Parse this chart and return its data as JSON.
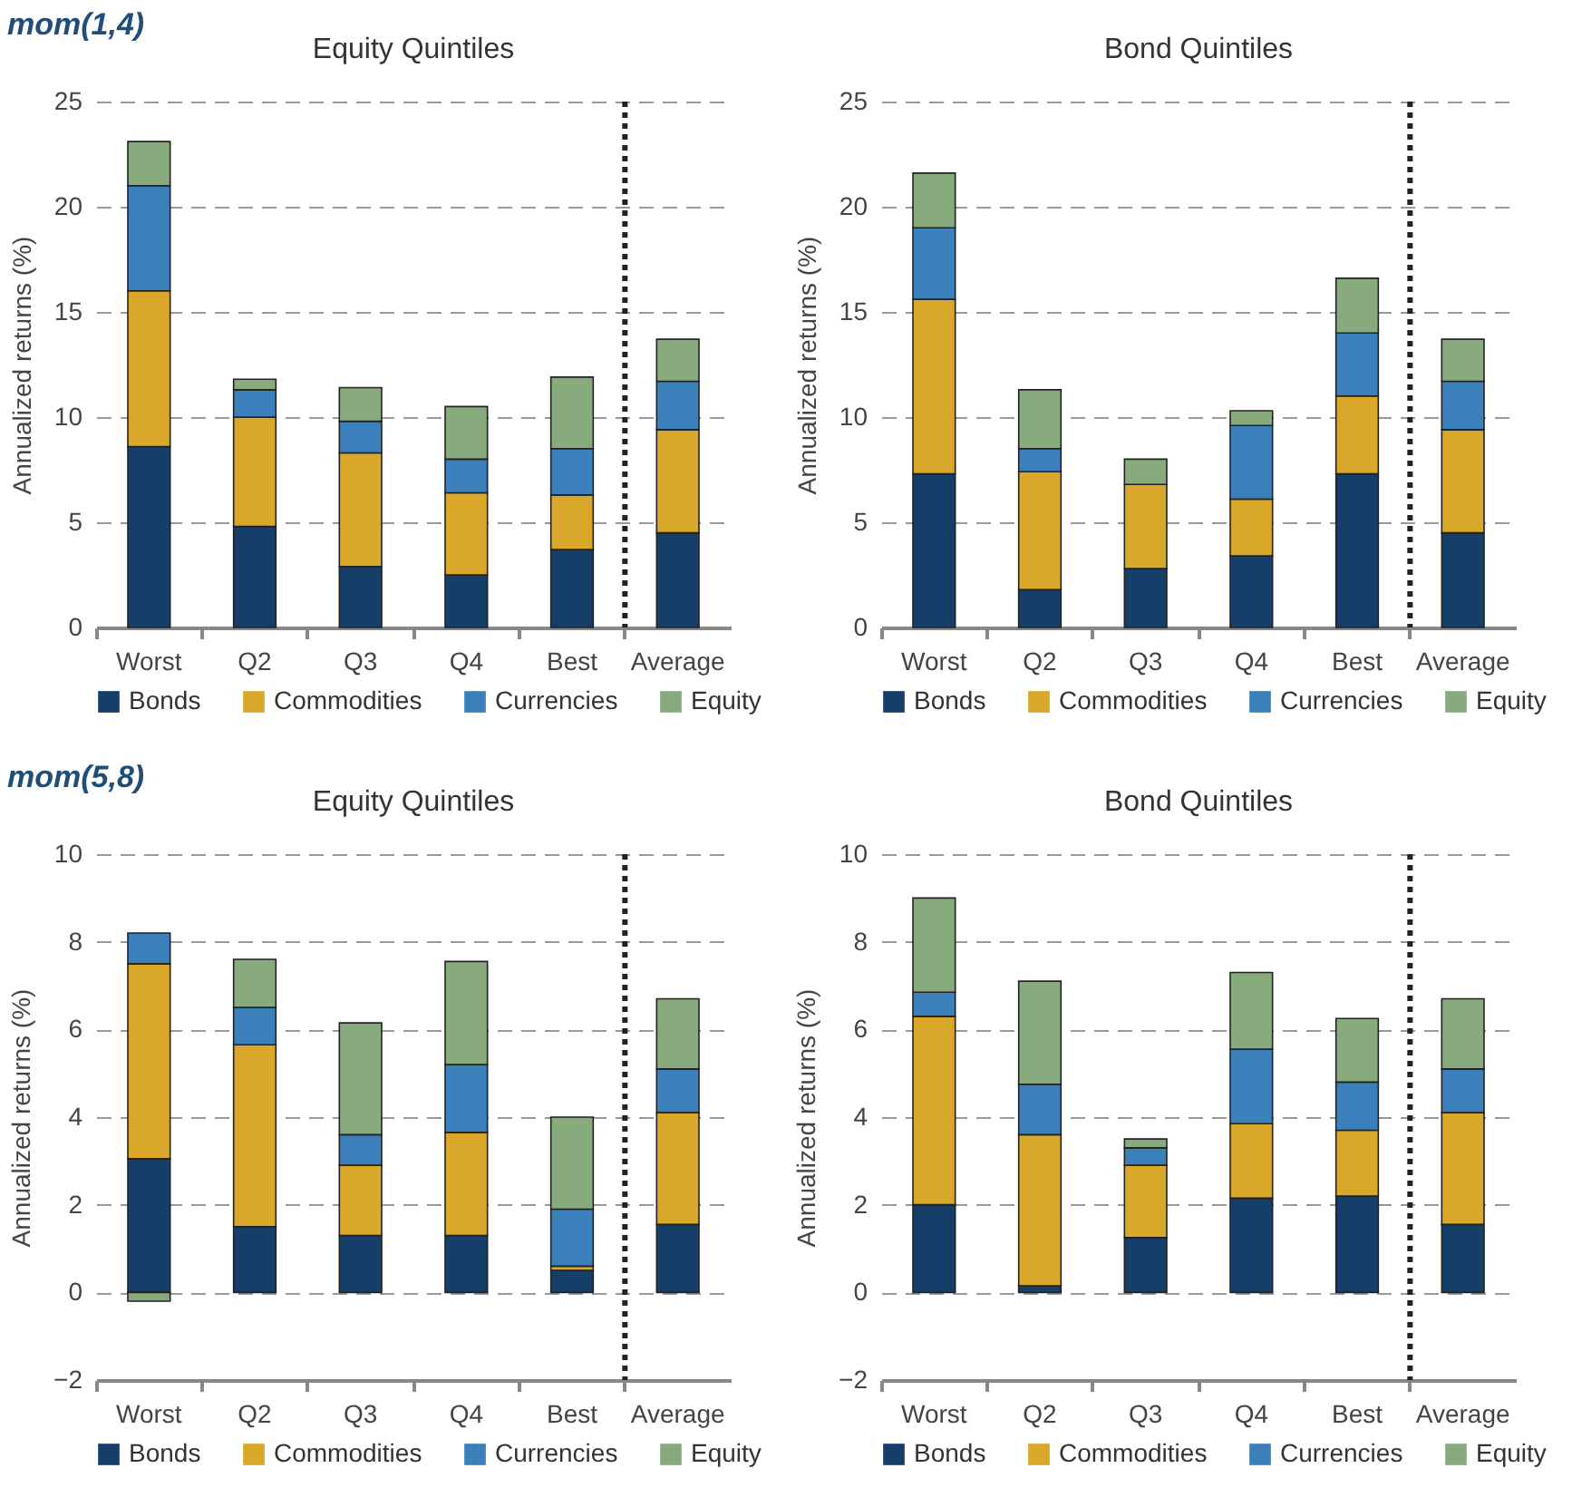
{
  "chart_data": [
    {
      "type": "bar",
      "annotations": [
        "mom(1,4)"
      ],
      "title": "Equity Quintiles",
      "ylabel": "Annualized returns (%)",
      "categories": [
        "Worst",
        "Q2",
        "Q3",
        "Q4",
        "Best",
        "Average"
      ],
      "stacked": true,
      "ylim": [
        0,
        25
      ],
      "yticks": [
        0,
        5,
        10,
        15,
        20,
        25
      ],
      "grid": "y",
      "legend": "bottom",
      "ref_lines": [
        {
          "axis": "x",
          "value": "Average",
          "line_style": "dotted",
          "color": "#222222"
        }
      ],
      "series": [
        {
          "name": "Bonds",
          "color": "#153e69",
          "values": [
            8.6,
            4.8,
            2.9,
            2.5,
            3.7,
            4.5
          ]
        },
        {
          "name": "Commodities",
          "color": "#d9a82a",
          "values": [
            7.4,
            5.2,
            5.4,
            3.9,
            2.6,
            4.9
          ]
        },
        {
          "name": "Currencies",
          "color": "#3b80bb",
          "values": [
            5.0,
            1.3,
            1.5,
            1.6,
            2.2,
            2.3
          ]
        },
        {
          "name": "Equity",
          "color": "#88ab7d",
          "values": [
            2.1,
            0.5,
            1.6,
            2.5,
            3.4,
            2.0
          ]
        }
      ]
    },
    {
      "type": "bar",
      "title": "Bond Quintiles",
      "ylabel": "Annualized returns (%)",
      "categories": [
        "Worst",
        "Q2",
        "Q3",
        "Q4",
        "Best",
        "Average"
      ],
      "stacked": true,
      "ylim": [
        0,
        25
      ],
      "yticks": [
        0,
        5,
        10,
        15,
        20,
        25
      ],
      "grid": "y",
      "legend": "bottom",
      "ref_lines": [
        {
          "axis": "x",
          "value": "Average",
          "line_style": "dotted",
          "color": "#222222"
        }
      ],
      "series": [
        {
          "name": "Bonds",
          "color": "#153e69",
          "values": [
            7.3,
            1.8,
            2.8,
            3.4,
            7.3,
            4.5
          ]
        },
        {
          "name": "Commodities",
          "color": "#d9a82a",
          "values": [
            8.3,
            5.6,
            4.0,
            2.7,
            3.7,
            4.9
          ]
        },
        {
          "name": "Currencies",
          "color": "#3b80bb",
          "values": [
            3.4,
            1.1,
            0,
            3.5,
            3.0,
            2.3
          ]
        },
        {
          "name": "Equity",
          "color": "#88ab7d",
          "values": [
            2.6,
            2.8,
            1.2,
            0.7,
            2.6,
            2.0
          ]
        }
      ]
    },
    {
      "type": "bar",
      "annotations": [
        "mom(5,8)"
      ],
      "title": "Equity Quintiles",
      "ylabel": "Annualized returns (%)",
      "categories": [
        "Worst",
        "Q2",
        "Q3",
        "Q4",
        "Best",
        "Average"
      ],
      "stacked": true,
      "ylim": [
        -2,
        10
      ],
      "yticks": [
        -2,
        0,
        2,
        4,
        6,
        8,
        10
      ],
      "grid": "y",
      "legend": "bottom",
      "ref_lines": [
        {
          "axis": "x",
          "value": "Average",
          "line_style": "dotted",
          "color": "#222222"
        }
      ],
      "series": [
        {
          "name": "Bonds",
          "color": "#153e69",
          "values": [
            3.05,
            1.5,
            1.3,
            1.3,
            0.5,
            1.55
          ]
        },
        {
          "name": "Commodities",
          "color": "#d9a82a",
          "values": [
            4.45,
            4.15,
            1.6,
            2.35,
            0.1,
            2.55
          ]
        },
        {
          "name": "Currencies",
          "color": "#3b80bb",
          "values": [
            0.7,
            0.85,
            0.7,
            1.55,
            1.3,
            1.0
          ]
        },
        {
          "name": "Equity",
          "color": "#88ab7d",
          "values": [
            -0.2,
            1.1,
            2.55,
            2.35,
            2.1,
            1.6
          ]
        }
      ]
    },
    {
      "type": "bar",
      "title": "Bond Quintiles",
      "ylabel": "Annualized returns (%)",
      "categories": [
        "Worst",
        "Q2",
        "Q3",
        "Q4",
        "Best",
        "Average"
      ],
      "stacked": true,
      "ylim": [
        -2,
        10
      ],
      "yticks": [
        -2,
        0,
        2,
        4,
        6,
        8,
        10
      ],
      "grid": "y",
      "legend": "bottom",
      "ref_lines": [
        {
          "axis": "x",
          "value": "Average",
          "line_style": "dotted",
          "color": "#222222"
        }
      ],
      "series": [
        {
          "name": "Bonds",
          "color": "#153e69",
          "values": [
            2.0,
            0.15,
            1.25,
            2.15,
            2.2,
            1.55
          ]
        },
        {
          "name": "Commodities",
          "color": "#d9a82a",
          "values": [
            4.3,
            3.45,
            1.65,
            1.7,
            1.5,
            2.55
          ]
        },
        {
          "name": "Currencies",
          "color": "#3b80bb",
          "values": [
            0.55,
            1.15,
            0.4,
            1.7,
            1.1,
            1.0
          ]
        },
        {
          "name": "Equity",
          "color": "#88ab7d",
          "values": [
            2.15,
            2.35,
            0.2,
            1.75,
            1.45,
            1.6
          ]
        }
      ]
    }
  ]
}
